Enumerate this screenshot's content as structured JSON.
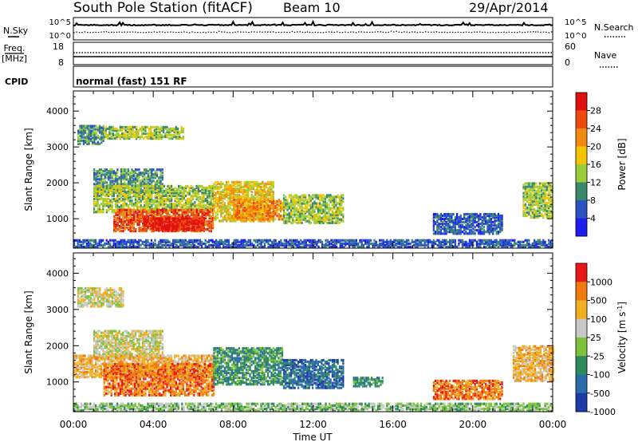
{
  "header": {
    "station_title": "South Pole Station (fitACF)",
    "beam": "Beam 10",
    "date": "29/Apr/2014"
  },
  "panels": {
    "nsky": {
      "label": "N.Sky",
      "ticks": [
        "10^5",
        "10^0"
      ]
    },
    "nsearch": {
      "label": "N.Search",
      "ticks": [
        "10^5",
        "10^0"
      ]
    },
    "freq": {
      "label_line1": "Freq.",
      "label_line2": "[MHz]",
      "ticks": [
        "18",
        "8"
      ]
    },
    "nave": {
      "label": "Nave",
      "ticks": [
        "60",
        "0"
      ]
    },
    "cpid": {
      "label": "CPID",
      "value": "normal (fast) 151 RF"
    }
  },
  "chart_data": [
    {
      "type": "heatmap",
      "name": "power",
      "ylabel": "Slant Range [km]",
      "xlabel": "Time UT",
      "ylim": [
        180,
        4560
      ],
      "yticks": [
        1000,
        2000,
        3000,
        4000
      ],
      "xticks": [
        "00:00",
        "04:00",
        "08:00",
        "12:00",
        "16:00",
        "20:00",
        "00:00"
      ],
      "colorbar": {
        "title": "Power [dB]",
        "tick_labels": [
          "4",
          "8",
          "12",
          "16",
          "20",
          "24",
          "28"
        ],
        "colors": [
          "#1d1df0",
          "#2a55c0",
          "#3a8a6a",
          "#9acc3a",
          "#f5c400",
          "#f08a10",
          "#ee4a10",
          "#e01010"
        ]
      },
      "regions": [
        {
          "t0": 0.2,
          "t1": 1.5,
          "r0": 3050,
          "r1": 3550,
          "level": 2
        },
        {
          "t0": 1.5,
          "t1": 5.5,
          "r0": 3200,
          "r1": 3550,
          "level": 3
        },
        {
          "t0": 1.0,
          "t1": 4.5,
          "r0": 1700,
          "r1": 2350,
          "level": 2
        },
        {
          "t0": 1.0,
          "t1": 7.0,
          "r0": 1150,
          "r1": 1900,
          "level": 3
        },
        {
          "t0": 2.0,
          "t1": 7.0,
          "r0": 620,
          "r1": 1250,
          "level": 6
        },
        {
          "t0": 3.5,
          "t1": 6.5,
          "r0": 650,
          "r1": 1000,
          "level": 7
        },
        {
          "t0": 7.0,
          "t1": 10.0,
          "r0": 900,
          "r1": 2000,
          "level": 4
        },
        {
          "t0": 8.0,
          "t1": 10.5,
          "r0": 950,
          "r1": 1500,
          "level": 5
        },
        {
          "t0": 10.5,
          "t1": 13.5,
          "r0": 850,
          "r1": 1650,
          "level": 3
        },
        {
          "t0": 18.0,
          "t1": 21.5,
          "r0": 550,
          "r1": 1100,
          "level": 1
        },
        {
          "t0": 22.5,
          "t1": 24.0,
          "r0": 1000,
          "r1": 1950,
          "level": 3
        },
        {
          "t0": 0.0,
          "t1": 24.0,
          "r0": 180,
          "r1": 380,
          "level": 1
        }
      ]
    },
    {
      "type": "heatmap",
      "name": "velocity",
      "ylabel": "Slant Range [km]",
      "xlabel": "Time UT",
      "ylim": [
        180,
        4560
      ],
      "yticks": [
        1000,
        2000,
        3000,
        4000
      ],
      "xticks": [
        "00:00",
        "04:00",
        "08:00",
        "12:00",
        "16:00",
        "20:00",
        "00:00"
      ],
      "colorbar": {
        "title": "Velocity [m s^-1]",
        "tick_labels": [
          "1000",
          "500",
          "100",
          "25",
          "-25",
          "-100",
          "-500",
          "-1000"
        ],
        "colors": [
          "#1d3aa8",
          "#2a6ca8",
          "#2e8a5a",
          "#7dc23a",
          "#c8c8c8",
          "#f0b020",
          "#f07a10",
          "#e81818"
        ]
      },
      "regions": [
        {
          "t0": 0.2,
          "t1": 2.5,
          "r0": 3050,
          "r1": 3550,
          "level": 4
        },
        {
          "t0": 1.0,
          "t1": 4.5,
          "r0": 1600,
          "r1": 2400,
          "level": 4
        },
        {
          "t0": 0.0,
          "t1": 7.0,
          "r0": 1100,
          "r1": 1700,
          "level": 5
        },
        {
          "t0": 1.5,
          "t1": 7.0,
          "r0": 600,
          "r1": 1500,
          "level": 6
        },
        {
          "t0": 7.0,
          "t1": 10.5,
          "r0": 900,
          "r1": 1900,
          "level": 2
        },
        {
          "t0": 10.5,
          "t1": 13.5,
          "r0": 800,
          "r1": 1600,
          "level": 1
        },
        {
          "t0": 14.0,
          "t1": 15.5,
          "r0": 850,
          "r1": 1100,
          "level": 2
        },
        {
          "t0": 18.0,
          "t1": 21.5,
          "r0": 500,
          "r1": 1000,
          "level": 6
        },
        {
          "t0": 22.0,
          "t1": 24.0,
          "r0": 1000,
          "r1": 1950,
          "level": 5
        },
        {
          "t0": 0.0,
          "t1": 24.0,
          "r0": 180,
          "r1": 380,
          "level": 3
        }
      ]
    }
  ]
}
